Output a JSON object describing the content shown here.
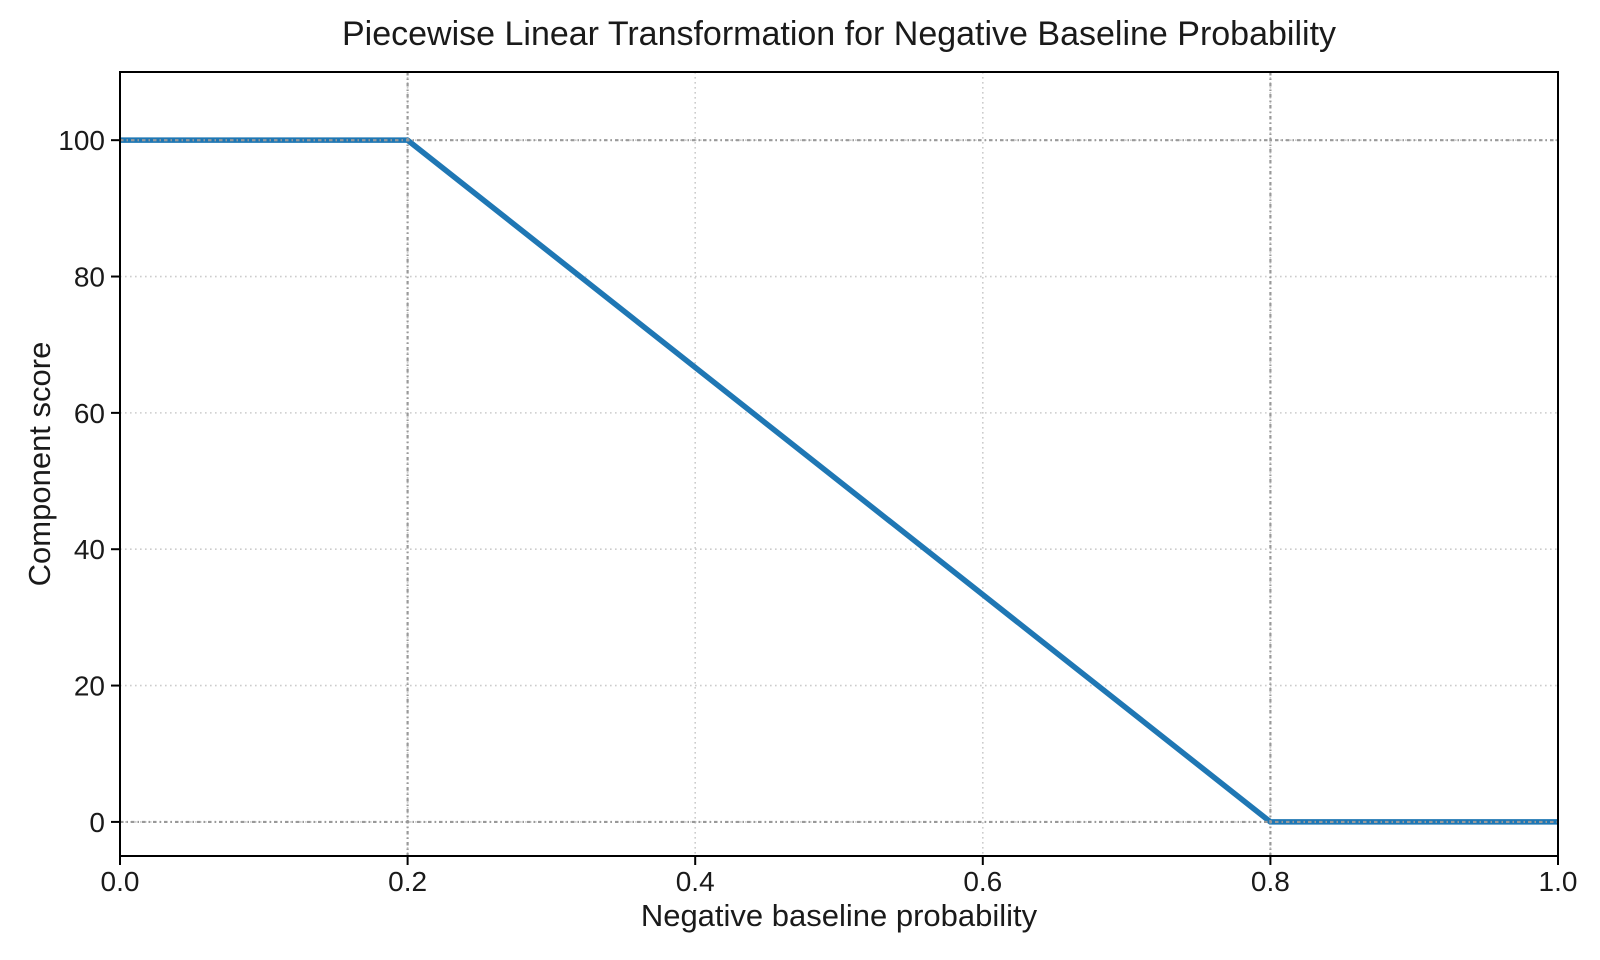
{
  "chart_data": {
    "type": "line",
    "title": "Piecewise Linear Transformation for Negative Baseline Probability",
    "xlabel": "Negative baseline probability",
    "ylabel": "Component score",
    "xlim": [
      0.0,
      1.0
    ],
    "ylim": [
      -5,
      110
    ],
    "xticks": [
      "0.0",
      "0.2",
      "0.4",
      "0.6",
      "0.8",
      "1.0"
    ],
    "xtick_values": [
      0.0,
      0.2,
      0.4,
      0.6,
      0.8,
      1.0
    ],
    "yticks": [
      "0",
      "20",
      "40",
      "60",
      "80",
      "100"
    ],
    "ytick_values": [
      0,
      20,
      40,
      60,
      80,
      100
    ],
    "grid": true,
    "legend": false,
    "series": [
      {
        "name": "component-score",
        "color": "#1f77b4",
        "x": [
          0.0,
          0.2,
          0.8,
          1.0
        ],
        "y": [
          100,
          100,
          0,
          0
        ]
      }
    ],
    "breakpoints": {
      "flat_high_until_x": 0.2,
      "flat_high_value": 100,
      "zero_from_x": 0.8,
      "zero_value": 0
    },
    "reference_lines": {
      "vertical_x": [
        0.2,
        0.8
      ],
      "horizontal_y": [
        100,
        0
      ],
      "style": "dash-dot",
      "color": "#999999"
    },
    "grid_color": "#cccccc",
    "axis_color": "#000000",
    "text_color": "#1a1a1a",
    "background_color": "#ffffff"
  }
}
